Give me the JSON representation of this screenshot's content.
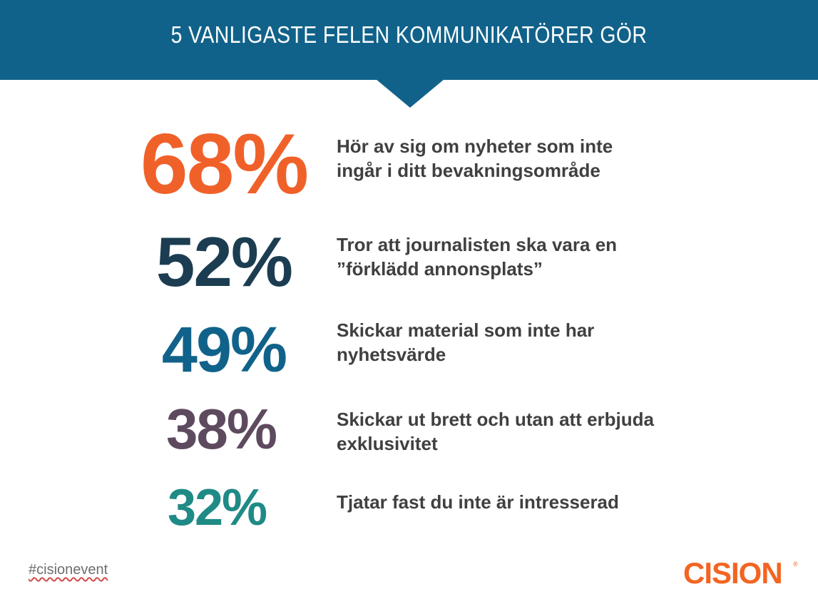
{
  "header": {
    "title": "5 VANLIGASTE FELEN KOMMUNIKATÖRER GÖR"
  },
  "stats": [
    {
      "percent": "68%",
      "line1": "Hör av sig om nyheter som inte",
      "line2": "ingår i ditt bevakningsområde",
      "color": "#f0612a"
    },
    {
      "percent": "52%",
      "line1": "Tror att journalisten ska vara en",
      "line2": "”förklädd annonsplats”",
      "color": "#1c3d51"
    },
    {
      "percent": "49%",
      "line1": "Skickar material som inte har",
      "line2": "nyhetsvärde",
      "color": "#11628a"
    },
    {
      "percent": "38%",
      "line1": "Skickar ut brett och utan att erbjuda",
      "line2": "exklusivitet",
      "color": "#5e4a5e"
    },
    {
      "percent": "32%",
      "line1": "Tjatar fast du inte är intresserad",
      "line2": "",
      "color": "#1f8a86"
    }
  ],
  "footer": {
    "hashtag": "#cisionevent",
    "logo": "CISION",
    "logo_mark": "®"
  }
}
